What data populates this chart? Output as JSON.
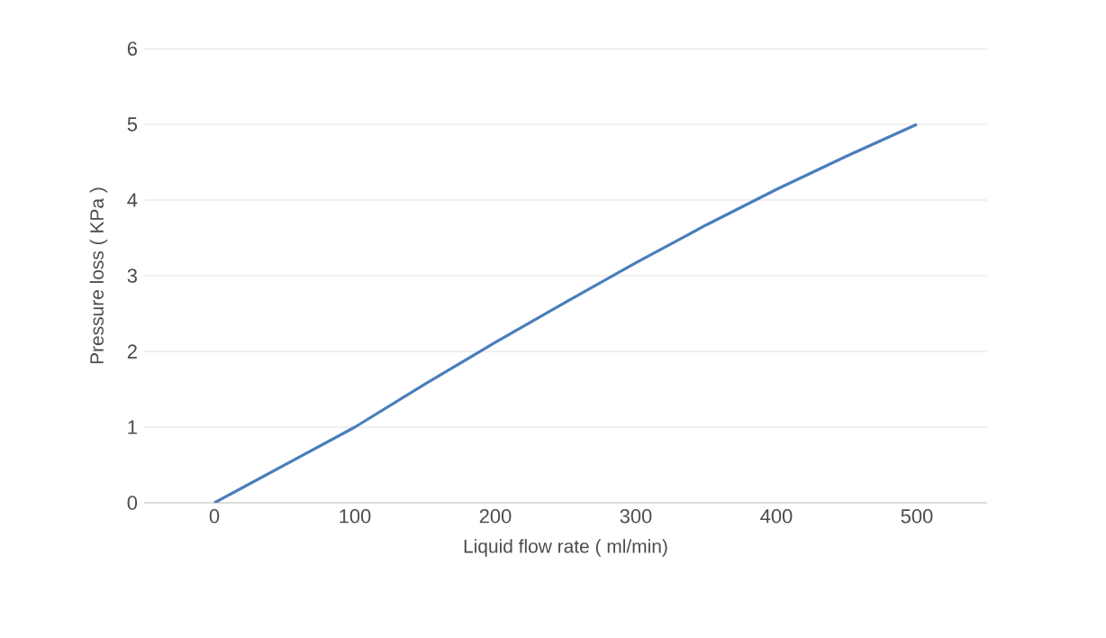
{
  "chart_data": {
    "type": "line",
    "xlabel": "Liquid flow rate ( ml/min)",
    "ylabel": "Pressure loss ( KPa )",
    "x": [
      0,
      50,
      100,
      150,
      200,
      250,
      300,
      350,
      400,
      450,
      500
    ],
    "series": [
      {
        "color": "#4a7ebb",
        "values": [
          0,
          0.5,
          1.0,
          1.57,
          2.12,
          2.65,
          3.17,
          3.67,
          4.14,
          4.58,
          5.0
        ]
      }
    ],
    "xlim": [
      -50,
      550
    ],
    "ylim": [
      0,
      6
    ],
    "xticks": [
      0,
      100,
      200,
      300,
      400,
      500
    ],
    "yticks": [
      0,
      1,
      2,
      3,
      4,
      5,
      6
    ],
    "grid": "y"
  }
}
